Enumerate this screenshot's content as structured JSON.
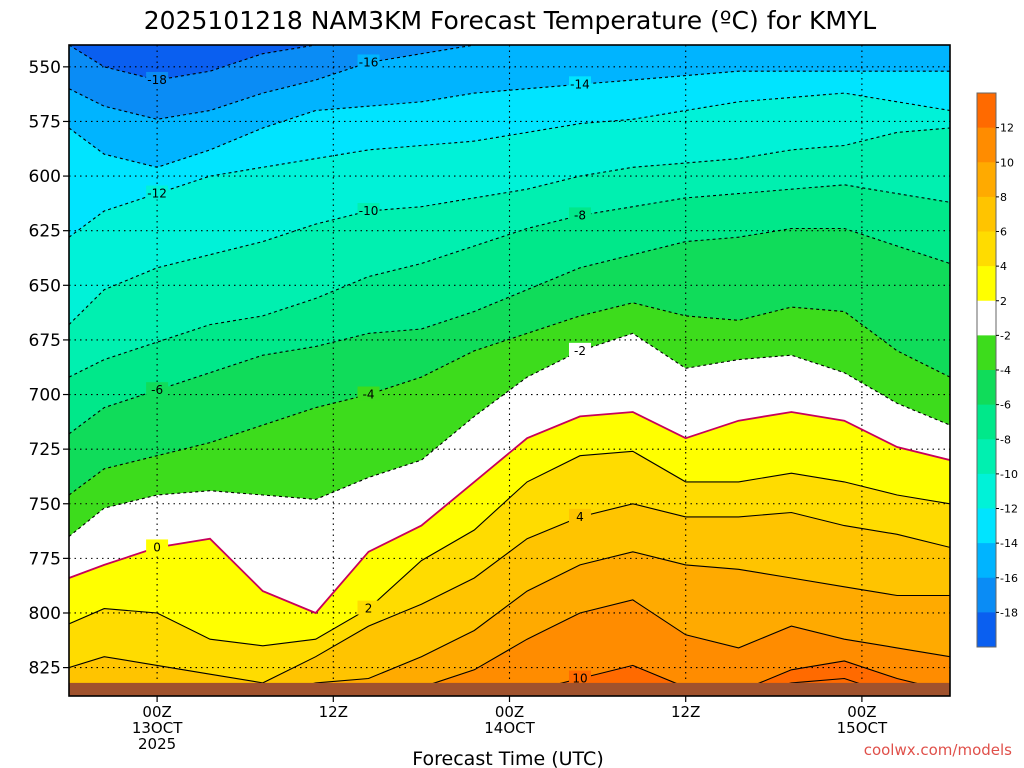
{
  "colors": {
    "band_colors": [
      "#0a5ff0",
      "#0a8cf5",
      "#00b4ff",
      "#00e4ff",
      "#00f2d8",
      "#00f0b0",
      "#00e88a",
      "#10dc5a",
      "#3ddc1c",
      "#ffffff",
      "#ffff00",
      "#ffdc00",
      "#ffc400",
      "#ffaa00",
      "#ff8c00",
      "#ff6a00"
    ],
    "ground": "#a0522d",
    "zero_line": "#c8005a",
    "credit": "#e0504a"
  },
  "chart_data": {
    "type": "heatmap",
    "title": "2025101218 NAM3KM Forecast Temperature (ºC) for KMYL",
    "xlabel": "Forecast Time (UTC)",
    "ylabel": "Pressure (hPa)",
    "credit": "coolwx.com/models",
    "x_range_hours": [
      -5,
      45
    ],
    "y_range_hpa": [
      540,
      838
    ],
    "surface_pressure_hpa": 832,
    "y_ticks": [
      "550",
      "575",
      "600",
      "625",
      "650",
      "675",
      "700",
      "725",
      "750",
      "775",
      "800",
      "825"
    ],
    "y_tick_values": [
      550,
      575,
      600,
      625,
      650,
      675,
      700,
      725,
      750,
      775,
      800,
      825
    ],
    "x_ticks": [
      {
        "hour": 0,
        "lines": [
          "00Z",
          "13OCT",
          "2025"
        ]
      },
      {
        "hour": 10,
        "lines": [
          "12Z"
        ]
      },
      {
        "hour": 20,
        "lines": [
          "00Z",
          "14OCT"
        ]
      },
      {
        "hour": 30,
        "lines": [
          "12Z"
        ]
      },
      {
        "hour": 40,
        "lines": [
          "00Z",
          "15OCT"
        ]
      }
    ],
    "colorbar": {
      "labels": [
        "12",
        "10",
        "8",
        "6",
        "4",
        "2",
        "-2",
        "-4",
        "-6",
        "-8",
        "-10",
        "-12",
        "-14",
        "-16",
        "-18"
      ],
      "levels": [
        12,
        10,
        8,
        6,
        4,
        2,
        -2,
        -4,
        -6,
        -8,
        -10,
        -12,
        -14,
        -16,
        -18
      ]
    },
    "isotherm_hours": [
      -5,
      -3,
      0,
      3,
      6,
      9,
      12,
      15,
      18,
      21,
      24,
      27,
      30,
      33,
      36,
      39,
      42,
      45
    ],
    "isotherms": [
      {
        "value": -18,
        "label": "-18",
        "pressures": [
          540,
          550,
          556,
          552,
          544,
          540,
          540,
          540,
          540,
          540,
          540,
          540,
          540,
          540,
          540,
          540,
          540,
          540
        ]
      },
      {
        "value": -16,
        "label": "-16",
        "pressures": [
          560,
          568,
          574,
          570,
          562,
          556,
          548,
          544,
          540,
          540,
          540,
          540,
          540,
          540,
          540,
          540,
          540,
          540
        ]
      },
      {
        "value": -14,
        "label": "-14",
        "pressures": [
          578,
          590,
          596,
          588,
          578,
          570,
          568,
          566,
          562,
          560,
          558,
          556,
          554,
          552,
          552,
          552,
          552,
          552
        ]
      },
      {
        "value": -12,
        "label": "-12",
        "pressures": [
          628,
          616,
          608,
          600,
          596,
          592,
          588,
          586,
          584,
          580,
          576,
          574,
          570,
          566,
          564,
          562,
          566,
          570
        ]
      },
      {
        "value": -10,
        "label": "-10",
        "pressures": [
          668,
          652,
          642,
          636,
          630,
          622,
          616,
          614,
          610,
          606,
          600,
          596,
          594,
          592,
          588,
          586,
          580,
          578
        ]
      },
      {
        "value": -8,
        "label": "-8",
        "pressures": [
          692,
          684,
          676,
          668,
          664,
          656,
          646,
          640,
          632,
          624,
          618,
          614,
          610,
          608,
          606,
          604,
          608,
          612
        ]
      },
      {
        "value": -6,
        "label": "-6",
        "pressures": [
          718,
          706,
          698,
          690,
          682,
          678,
          672,
          670,
          662,
          652,
          642,
          636,
          630,
          628,
          624,
          624,
          632,
          640
        ]
      },
      {
        "value": -4,
        "label": "-4",
        "pressures": [
          746,
          734,
          728,
          722,
          714,
          706,
          700,
          692,
          680,
          672,
          664,
          658,
          664,
          666,
          660,
          662,
          680,
          692
        ]
      },
      {
        "value": -2,
        "label": "-2",
        "pressures": [
          765,
          752,
          746,
          744,
          746,
          748,
          738,
          730,
          710,
          692,
          680,
          672,
          688,
          684,
          682,
          690,
          704,
          714
        ]
      },
      {
        "value": 0,
        "label": "0",
        "pressures": [
          784,
          778,
          770,
          766,
          790,
          800,
          772,
          760,
          740,
          720,
          710,
          708,
          720,
          712,
          708,
          712,
          724,
          730
        ]
      },
      {
        "value": 2,
        "label": "2",
        "pressures": [
          805,
          798,
          800,
          812,
          815,
          812,
          798,
          776,
          762,
          740,
          728,
          726,
          740,
          740,
          736,
          740,
          746,
          750
        ]
      },
      {
        "value": 4,
        "label": "4",
        "pressures": [
          825,
          820,
          824,
          828,
          832,
          820,
          806,
          796,
          784,
          766,
          756,
          750,
          756,
          756,
          754,
          760,
          764,
          770
        ]
      },
      {
        "value": 6,
        "label": "6",
        "pressures": [
          838,
          838,
          838,
          838,
          838,
          832,
          830,
          820,
          808,
          790,
          778,
          772,
          778,
          780,
          784,
          788,
          792,
          792
        ]
      },
      {
        "value": 8,
        "label": "8",
        "pressures": [
          838,
          838,
          838,
          838,
          838,
          838,
          838,
          834,
          826,
          812,
          800,
          794,
          810,
          816,
          806,
          812,
          816,
          820
        ]
      },
      {
        "value": 10,
        "label": "10",
        "pressures": [
          838,
          838,
          838,
          838,
          838,
          838,
          838,
          838,
          838,
          836,
          830,
          824,
          834,
          836,
          826,
          822,
          830,
          836
        ]
      },
      {
        "value": 12,
        "label": "12",
        "pressures": [
          838,
          838,
          838,
          838,
          838,
          838,
          838,
          838,
          838,
          838,
          838,
          838,
          838,
          838,
          832,
          830,
          838,
          838
        ]
      }
    ]
  }
}
